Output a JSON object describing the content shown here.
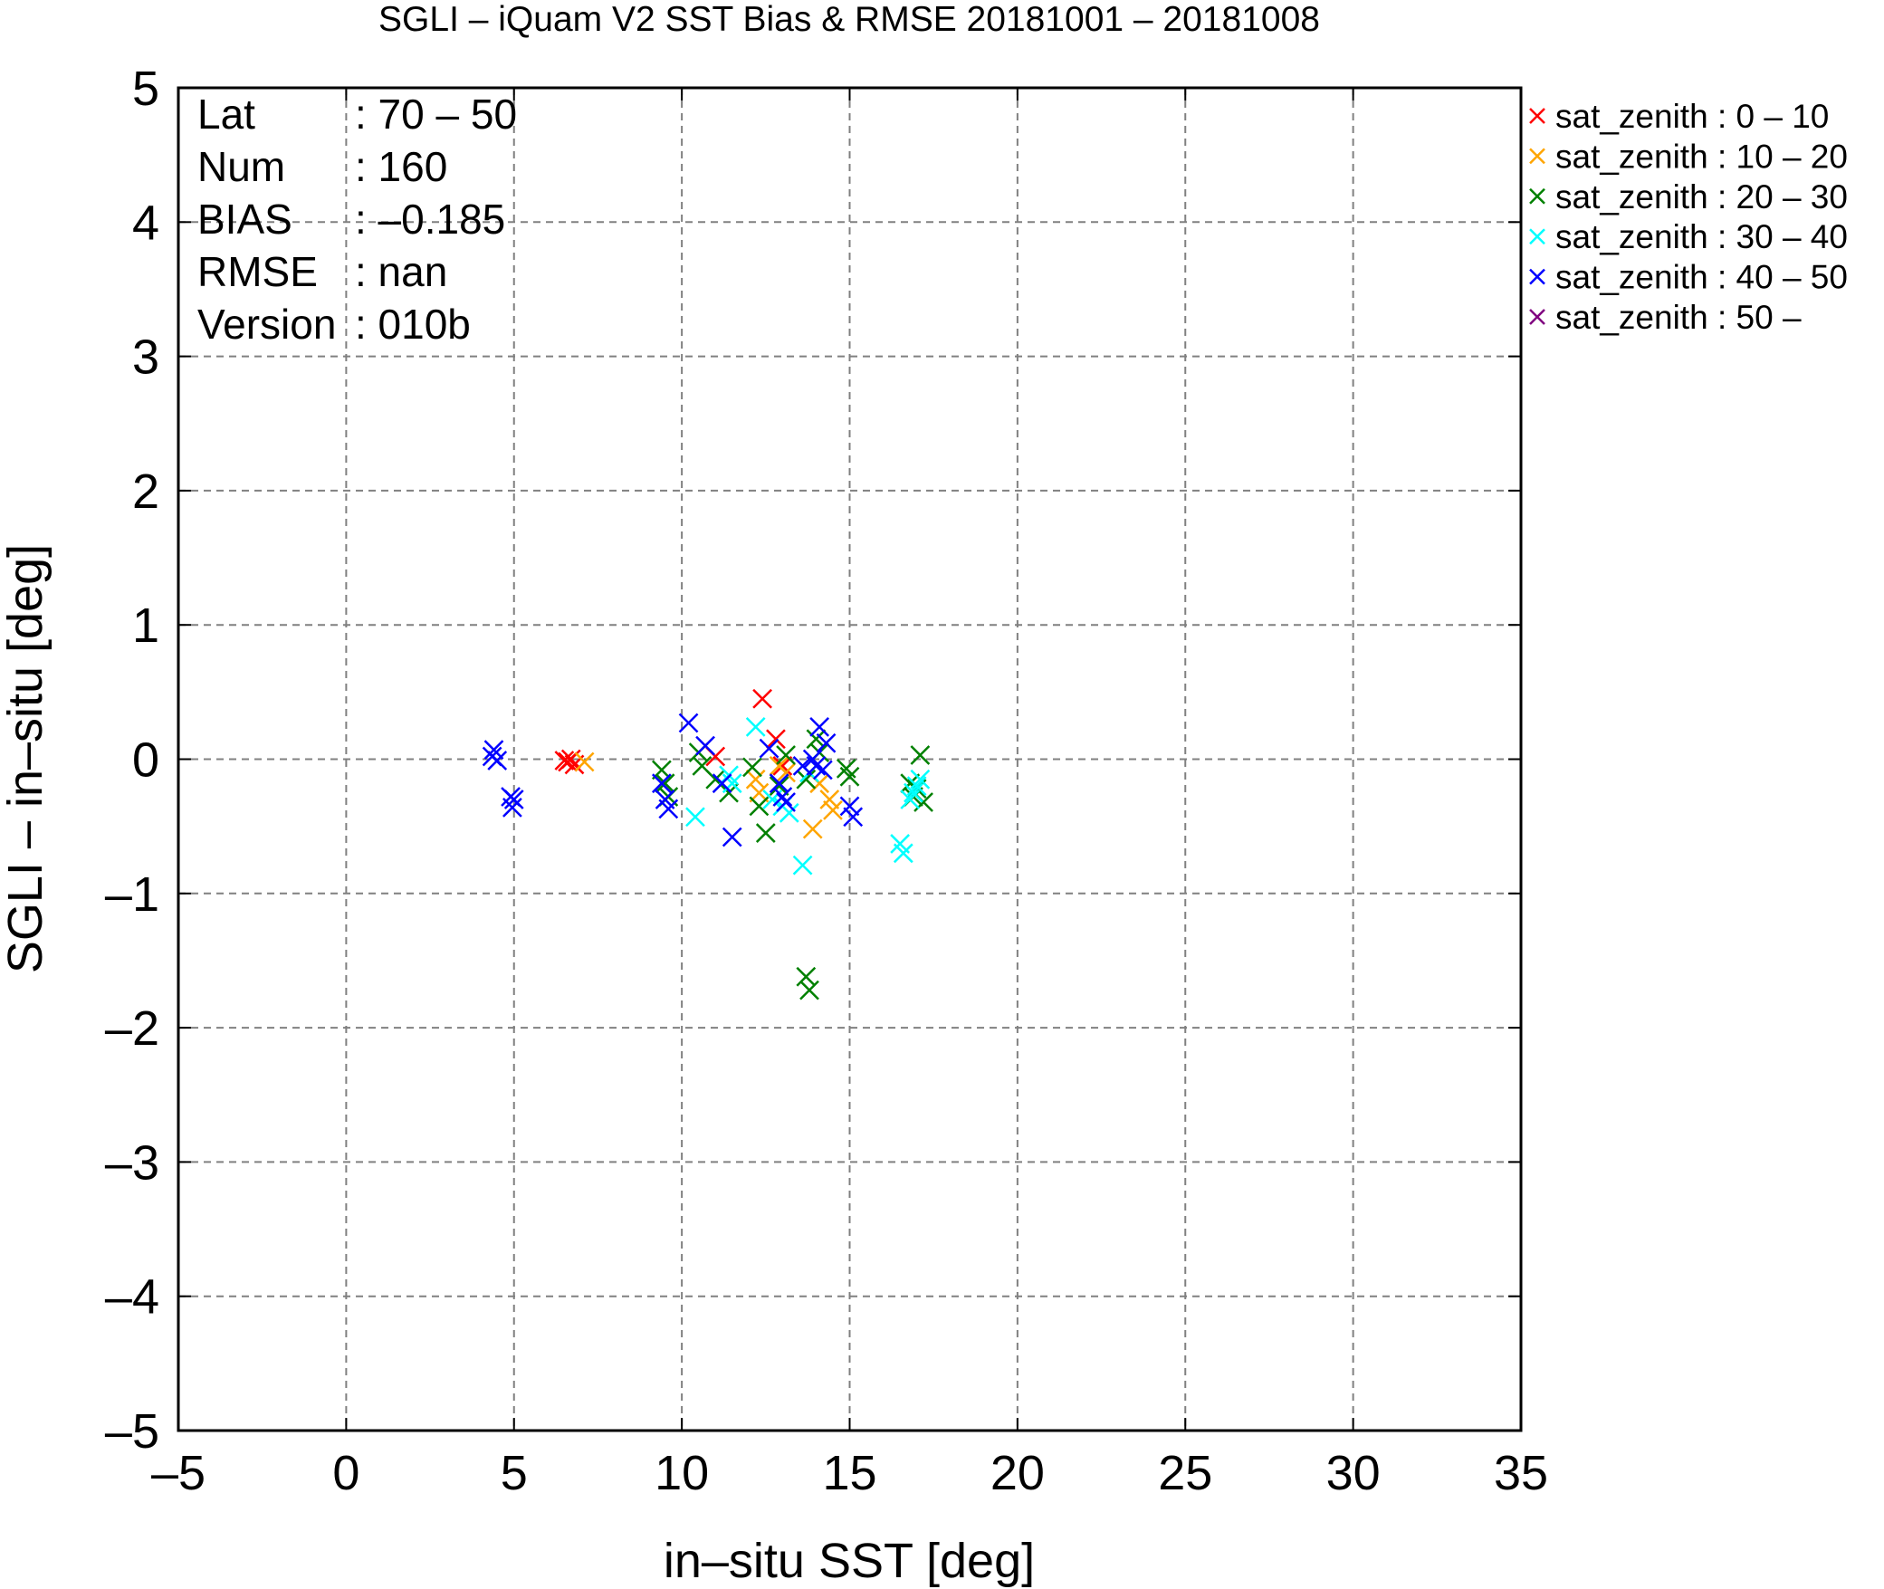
{
  "chart_data": {
    "type": "scatter",
    "title": "SGLI – iQuam V2 SST Bias & RMSE 20181001 – 20181008",
    "xlabel": "in–situ SST [deg]",
    "ylabel": "SGLI – in–situ [deg]",
    "xlim": [
      -5,
      35
    ],
    "ylim": [
      -5,
      5
    ],
    "xticks": [
      "–5",
      "0",
      "5",
      "10",
      "15",
      "20",
      "25",
      "30",
      "35"
    ],
    "yticks": [
      "5",
      "4",
      "3",
      "2",
      "1",
      "0",
      "–1",
      "–2",
      "–3",
      "–4",
      "–5"
    ],
    "grid": true,
    "marker": "x",
    "legend_position": "outside-right",
    "stats": [
      {
        "label": "Lat",
        "value": ": 70 – 50"
      },
      {
        "label": "Num",
        "value": ": 160"
      },
      {
        "label": "BIAS",
        "value": ": –0.185"
      },
      {
        "label": "RMSE",
        "value": ": nan"
      },
      {
        "label": "Version",
        "value": ": 010b"
      }
    ],
    "series": [
      {
        "name": "sat_zenith :  0 – 10",
        "color": "#ff0000",
        "points": [
          [
            6.6,
            -0.02
          ],
          [
            6.7,
            0.0
          ],
          [
            6.8,
            -0.04
          ],
          [
            6.5,
            -0.01
          ],
          [
            11.0,
            0.02
          ],
          [
            12.4,
            0.45
          ],
          [
            12.8,
            0.15
          ],
          [
            13.0,
            -0.05
          ]
        ]
      },
      {
        "name": "sat_zenith : 10 – 20",
        "color": "#ffa500",
        "points": [
          [
            7.1,
            -0.02
          ],
          [
            12.2,
            -0.15
          ],
          [
            12.3,
            -0.25
          ],
          [
            13.1,
            -0.1
          ],
          [
            13.9,
            -0.52
          ],
          [
            14.1,
            -0.18
          ],
          [
            14.4,
            -0.3
          ],
          [
            14.5,
            -0.38
          ],
          [
            12.9,
            -0.05
          ]
        ]
      },
      {
        "name": "sat_zenith : 20 – 30",
        "color": "#008000",
        "points": [
          [
            9.4,
            -0.08
          ],
          [
            9.5,
            -0.18
          ],
          [
            9.6,
            -0.28
          ],
          [
            10.5,
            0.05
          ],
          [
            10.6,
            -0.05
          ],
          [
            11.0,
            -0.15
          ],
          [
            11.4,
            -0.25
          ],
          [
            12.1,
            -0.06
          ],
          [
            12.3,
            -0.35
          ],
          [
            12.5,
            -0.55
          ],
          [
            12.9,
            -0.2
          ],
          [
            13.1,
            0.03
          ],
          [
            13.7,
            -0.15
          ],
          [
            13.7,
            -1.62
          ],
          [
            13.8,
            -1.72
          ],
          [
            14.0,
            0.15
          ],
          [
            14.9,
            -0.07
          ],
          [
            15.0,
            -0.13
          ],
          [
            16.8,
            -0.18
          ],
          [
            16.9,
            -0.28
          ],
          [
            17.1,
            0.03
          ],
          [
            17.2,
            -0.32
          ],
          [
            17.0,
            -0.22
          ],
          [
            14.1,
            0.05
          ]
        ]
      },
      {
        "name": "sat_zenith : 30 – 40",
        "color": "#00ffff",
        "points": [
          [
            10.4,
            -0.43
          ],
          [
            11.4,
            -0.12
          ],
          [
            11.5,
            -0.18
          ],
          [
            12.2,
            0.24
          ],
          [
            12.7,
            -0.3
          ],
          [
            13.0,
            -0.35
          ],
          [
            13.2,
            -0.4
          ],
          [
            13.6,
            -0.79
          ],
          [
            16.5,
            -0.63
          ],
          [
            16.6,
            -0.7
          ],
          [
            16.9,
            -0.25
          ],
          [
            17.0,
            -0.2
          ],
          [
            17.1,
            -0.15
          ],
          [
            16.8,
            -0.3
          ],
          [
            13.8,
            -0.1
          ]
        ]
      },
      {
        "name": "sat_zenith : 40 – 50",
        "color": "#0000ff",
        "points": [
          [
            4.4,
            0.07
          ],
          [
            4.35,
            0.02
          ],
          [
            4.5,
            -0.01
          ],
          [
            4.9,
            -0.28
          ],
          [
            5.0,
            -0.3
          ],
          [
            4.95,
            -0.36
          ],
          [
            9.4,
            -0.18
          ],
          [
            9.5,
            -0.3
          ],
          [
            9.6,
            -0.37
          ],
          [
            10.2,
            0.27
          ],
          [
            10.7,
            0.1
          ],
          [
            11.2,
            -0.18
          ],
          [
            11.5,
            -0.58
          ],
          [
            12.6,
            0.08
          ],
          [
            12.9,
            -0.18
          ],
          [
            13.0,
            -0.28
          ],
          [
            13.1,
            -0.32
          ],
          [
            13.6,
            -0.05
          ],
          [
            13.9,
            0.0
          ],
          [
            14.1,
            0.24
          ],
          [
            14.2,
            -0.08
          ],
          [
            14.3,
            0.12
          ],
          [
            15.0,
            -0.35
          ],
          [
            15.1,
            -0.43
          ],
          [
            14.0,
            -0.05
          ]
        ]
      },
      {
        "name": "sat_zenith : 50 –",
        "color": "#800080",
        "points": []
      }
    ]
  }
}
